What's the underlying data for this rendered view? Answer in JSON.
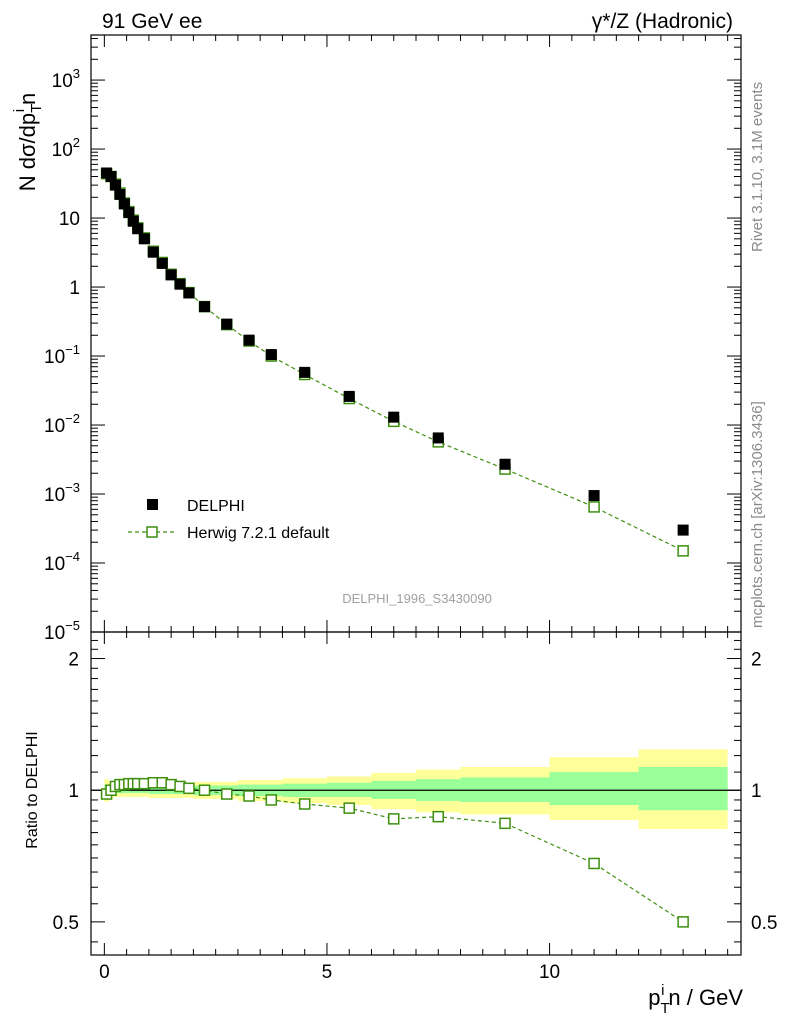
{
  "header": {
    "left_label": "91 GeV ee",
    "right_label": "γ*/Z (Hadronic)"
  },
  "side_labels": {
    "rivet": "Rivet 3.1.10,  3.1M events",
    "mcplots": "mcplots.cern.ch [arXiv:1306.3436]"
  },
  "watermark": "DELPHI_1996_S3430090",
  "y_axis_label": "N dσ/dp_T^in",
  "ratio_axis_label": "Ratio to DELPHI",
  "x_axis_label": "p_T^in / GeV",
  "colors": {
    "data": "#000000",
    "mc": "#3d8f0e",
    "band_inner": "#99ff99",
    "band_outer": "#ffff99"
  },
  "legend": [
    {
      "label": "DELPHI",
      "style": "data"
    },
    {
      "label": "Herwig 7.2.1 default",
      "style": "mc"
    }
  ],
  "chart_data": [
    {
      "type": "scatter",
      "title": "N dσ/dp_T^in",
      "xlabel": "p_T^in / GeV",
      "ylabel": "N dσ/dp_T^in",
      "yscale": "log",
      "xlim": [
        -0.3,
        14.3
      ],
      "ylim": [
        1e-05,
        4500
      ],
      "x_ticks": [
        0,
        5,
        10
      ],
      "y_ticks": [
        {
          "value": 1000.0,
          "mant": "10",
          "exp": "3"
        },
        {
          "value": 100.0,
          "mant": "10",
          "exp": "2"
        },
        {
          "value": 10,
          "mant": "10",
          "exp": ""
        },
        {
          "value": 1,
          "mant": "1",
          "exp": ""
        },
        {
          "value": 0.1,
          "mant": "10",
          "exp": "−1"
        },
        {
          "value": 0.01,
          "mant": "10",
          "exp": "−2"
        },
        {
          "value": 0.001,
          "mant": "10",
          "exp": "−3"
        },
        {
          "value": 0.0001,
          "mant": "10",
          "exp": "−4"
        },
        {
          "value": 1e-05,
          "mant": "10",
          "exp": "−5"
        }
      ],
      "series": [
        {
          "name": "DELPHI",
          "x": [
            0.05,
            0.15,
            0.25,
            0.35,
            0.45,
            0.55,
            0.65,
            0.75,
            0.9,
            1.1,
            1.3,
            1.5,
            1.7,
            1.9,
            2.25,
            2.75,
            3.25,
            3.75,
            4.5,
            5.5,
            6.5,
            7.5,
            9.0,
            11.0,
            13.0
          ],
          "y": [
            45,
            40,
            30,
            22,
            16,
            12,
            9,
            7,
            5,
            3.2,
            2.2,
            1.5,
            1.1,
            0.82,
            0.52,
            0.29,
            0.17,
            0.105,
            0.058,
            0.026,
            0.013,
            0.0065,
            0.0027,
            0.00095,
            0.0003
          ]
        },
        {
          "name": "Herwig 7.2.1 default",
          "x": [
            0.05,
            0.15,
            0.25,
            0.35,
            0.45,
            0.55,
            0.65,
            0.75,
            0.9,
            1.1,
            1.3,
            1.5,
            1.7,
            1.9,
            2.25,
            2.75,
            3.25,
            3.75,
            4.5,
            5.5,
            6.5,
            7.5,
            9.0,
            11.0,
            13.0
          ],
          "y": [
            44,
            40,
            31,
            23,
            16.5,
            12.4,
            9.3,
            7.2,
            5.15,
            3.3,
            2.27,
            1.53,
            1.12,
            0.83,
            0.52,
            0.285,
            0.165,
            0.1,
            0.054,
            0.0242,
            0.0113,
            0.0057,
            0.0023,
            0.00065,
            0.00015
          ]
        }
      ]
    },
    {
      "type": "scatter",
      "title": "Ratio to DELPHI",
      "xlabel": "p_T^in / GeV",
      "ylabel": "Ratio to DELPHI",
      "xlim": [
        -0.3,
        14.3
      ],
      "ylim": [
        0.42,
        2.3
      ],
      "yscale": "log",
      "y_ticks": [
        {
          "value": 0.5,
          "label": "0.5"
        },
        {
          "value": 1,
          "label": "1"
        },
        {
          "value": 2,
          "label": "2"
        }
      ],
      "reference_line": 1,
      "uncertainty_bands": [
        {
          "xlo": 0.0,
          "xhi": 0.1,
          "inner": [
            0.97,
            1.03
          ],
          "outer": [
            0.94,
            1.06
          ]
        },
        {
          "xlo": 0.1,
          "xhi": 0.2,
          "inner": [
            0.98,
            1.02
          ],
          "outer": [
            0.955,
            1.045
          ]
        },
        {
          "xlo": 0.2,
          "xhi": 1.0,
          "inner": [
            0.985,
            1.015
          ],
          "outer": [
            0.965,
            1.035
          ]
        },
        {
          "xlo": 1.0,
          "xhi": 2.0,
          "inner": [
            0.98,
            1.02
          ],
          "outer": [
            0.96,
            1.04
          ]
        },
        {
          "xlo": 2.0,
          "xhi": 3.0,
          "inner": [
            0.975,
            1.025
          ],
          "outer": [
            0.955,
            1.045
          ]
        },
        {
          "xlo": 3.0,
          "xhi": 4.0,
          "inner": [
            0.97,
            1.03
          ],
          "outer": [
            0.945,
            1.055
          ]
        },
        {
          "xlo": 4.0,
          "xhi": 5.0,
          "inner": [
            0.965,
            1.035
          ],
          "outer": [
            0.935,
            1.065
          ]
        },
        {
          "xlo": 5.0,
          "xhi": 6.0,
          "inner": [
            0.965,
            1.04
          ],
          "outer": [
            0.925,
            1.075
          ]
        },
        {
          "xlo": 6.0,
          "xhi": 7.0,
          "inner": [
            0.955,
            1.05
          ],
          "outer": [
            0.905,
            1.095
          ]
        },
        {
          "xlo": 7.0,
          "xhi": 8.0,
          "inner": [
            0.945,
            1.06
          ],
          "outer": [
            0.89,
            1.115
          ]
        },
        {
          "xlo": 8.0,
          "xhi": 10.0,
          "inner": [
            0.94,
            1.07
          ],
          "outer": [
            0.88,
            1.13
          ]
        },
        {
          "xlo": 10.0,
          "xhi": 12.0,
          "inner": [
            0.925,
            1.1
          ],
          "outer": [
            0.855,
            1.19
          ]
        },
        {
          "xlo": 12.0,
          "xhi": 14.0,
          "inner": [
            0.9,
            1.13
          ],
          "outer": [
            0.815,
            1.24
          ]
        }
      ],
      "series": [
        {
          "name": "Herwig 7.2.1 default / DELPHI",
          "x": [
            0.05,
            0.15,
            0.25,
            0.35,
            0.45,
            0.55,
            0.65,
            0.75,
            0.9,
            1.1,
            1.3,
            1.5,
            1.7,
            1.9,
            2.25,
            2.75,
            3.25,
            3.75,
            4.5,
            5.5,
            6.5,
            7.5,
            9.0,
            11.0,
            13.0
          ],
          "y": [
            0.98,
            1.0,
            1.02,
            1.03,
            1.03,
            1.035,
            1.035,
            1.035,
            1.035,
            1.04,
            1.04,
            1.03,
            1.02,
            1.01,
            1.0,
            0.98,
            0.97,
            0.95,
            0.93,
            0.91,
            0.86,
            0.87,
            0.84,
            0.68,
            0.5
          ]
        }
      ]
    }
  ]
}
